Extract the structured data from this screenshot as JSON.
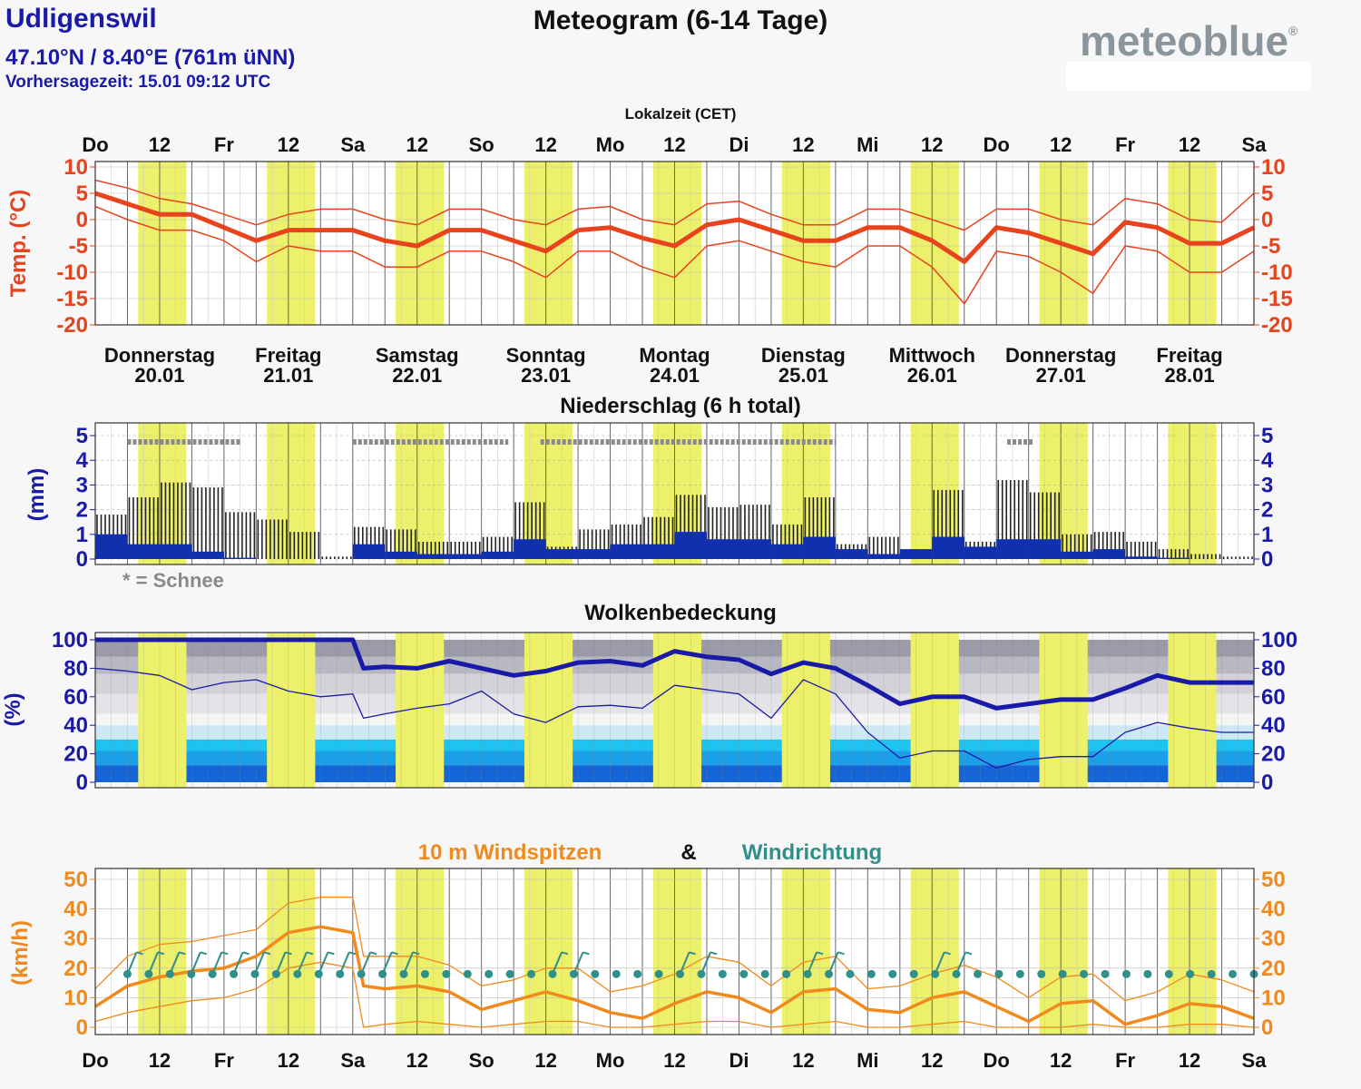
{
  "header": {
    "location": "Udligenswil",
    "coordinates": "47.10°N / 8.40°E (761m üNN)",
    "forecast_time": "Vorhersagezeit: 15.01 09:12 UTC",
    "title": "Meteogram (6-14 Tage)",
    "logo": "meteoblue",
    "logo_mark": "®",
    "local_time_label": "Lokalzeit (CET)"
  },
  "colors": {
    "temperature": "#e8431c",
    "precip_axis": "#1a1aa8",
    "precip_bar": "#1030b0",
    "cloud_line": "#1a1aa8",
    "wind_gust": "#f08a1c",
    "wind_dir": "#2f8f8a",
    "daylight_band": "#ecf06a",
    "snow_marker": "#8a8a8a"
  },
  "time_axis": {
    "tick_labels": [
      "Do",
      "12",
      "Fr",
      "12",
      "Sa",
      "12",
      "So",
      "12",
      "Mo",
      "12",
      "Di",
      "12",
      "Mi",
      "12",
      "Do",
      "12",
      "Fr",
      "12",
      "Sa"
    ]
  },
  "days": [
    {
      "name": "Donnerstag",
      "date": "20.01"
    },
    {
      "name": "Freitag",
      "date": "21.01"
    },
    {
      "name": "Samstag",
      "date": "22.01"
    },
    {
      "name": "Sonntag",
      "date": "23.01"
    },
    {
      "name": "Montag",
      "date": "24.01"
    },
    {
      "name": "Dienstag",
      "date": "25.01"
    },
    {
      "name": "Mittwoch",
      "date": "26.01"
    },
    {
      "name": "Donnerstag",
      "date": "27.01"
    },
    {
      "name": "Freitag",
      "date": "28.01"
    }
  ],
  "chart_data": [
    {
      "type": "line",
      "panel": "temperature",
      "ylabel": "Temp. (°C)",
      "ylim": [
        -20,
        10
      ],
      "yticks": [
        "10",
        "5",
        "0",
        "-5",
        "-10",
        "-15",
        "-20"
      ],
      "x_unit": "hours from Do 00:00",
      "x": [
        0,
        6,
        12,
        18,
        24,
        30,
        36,
        42,
        48,
        54,
        60,
        66,
        72,
        78,
        84,
        90,
        96,
        102,
        108,
        114,
        120,
        126,
        132,
        138,
        144,
        150,
        156,
        162,
        168,
        174,
        180,
        186,
        192,
        198,
        204,
        210,
        216
      ],
      "series": [
        {
          "role": "mean",
          "values": [
            5,
            3,
            1,
            1,
            -1.5,
            -4,
            -2,
            -2,
            -2,
            -4,
            -5,
            -2,
            -2,
            -4,
            -6,
            -2,
            -1.5,
            -3.5,
            -5,
            -1,
            0,
            -2,
            -4,
            -4,
            -1.5,
            -1.5,
            -4,
            -8,
            -1.5,
            -2.5,
            -4.5,
            -6.5,
            -0.5,
            -1.5,
            -4.5,
            -4.5,
            -1.5
          ]
        },
        {
          "role": "upper",
          "values": [
            7.5,
            6,
            4,
            3,
            1,
            -1,
            1,
            2,
            2,
            0,
            -1,
            2,
            2,
            0,
            -1,
            2,
            2.5,
            0,
            -1,
            3,
            3.5,
            1,
            -1,
            -1,
            2,
            2,
            0,
            -2,
            2,
            2,
            0,
            -1,
            4,
            3,
            0,
            -0.5,
            5
          ]
        },
        {
          "role": "lower",
          "values": [
            2.5,
            0,
            -2,
            -2,
            -4,
            -8,
            -5,
            -6,
            -6,
            -9,
            -9,
            -6,
            -6,
            -8,
            -11,
            -6,
            -6,
            -9,
            -11,
            -5,
            -4,
            -6,
            -8,
            -9,
            -5,
            -5,
            -9,
            -16,
            -6,
            -7,
            -10,
            -14,
            -5,
            -6,
            -10,
            -10,
            -6
          ]
        }
      ]
    },
    {
      "type": "bar",
      "panel": "precipitation",
      "title": "Niederschlag (6 h total)",
      "ylabel": "(mm)",
      "ylim": [
        0,
        5
      ],
      "yticks": [
        "5",
        "4",
        "3",
        "2",
        "1",
        "0"
      ],
      "x_unit": "hours from Do 00:00",
      "x": [
        0,
        6,
        12,
        18,
        24,
        30,
        36,
        42,
        48,
        54,
        60,
        66,
        72,
        78,
        84,
        90,
        96,
        102,
        108,
        114,
        120,
        126,
        132,
        138,
        144,
        150,
        156,
        162,
        168,
        174,
        180,
        186,
        192,
        198,
        204,
        210
      ],
      "series": [
        {
          "role": "total_range",
          "values": [
            1.8,
            2.5,
            3.1,
            2.9,
            1.9,
            1.6,
            1.1,
            0.1,
            1.3,
            1.2,
            0.7,
            0.7,
            0.9,
            2.3,
            0.5,
            1.2,
            1.4,
            1.7,
            2.6,
            2.1,
            2.2,
            1.4,
            2.5,
            0.6,
            0.9,
            0.4,
            2.8,
            0.7,
            3.2,
            2.7,
            1,
            1.1,
            0.7,
            0.4,
            0.2,
            0.1
          ]
        },
        {
          "role": "mean",
          "values": [
            1,
            0.6,
            0.6,
            0.3,
            0.05,
            0,
            0,
            0,
            0.6,
            0.3,
            0.2,
            0.2,
            0.3,
            0.8,
            0.4,
            0.4,
            0.6,
            0.6,
            1.1,
            0.8,
            0.8,
            0.6,
            0.9,
            0.4,
            0.2,
            0.4,
            0.9,
            0.5,
            0.8,
            0.8,
            0.3,
            0.4,
            0.1,
            0.05,
            0,
            0
          ]
        }
      ],
      "snow_label": "* = Schnee",
      "snow_periods": [
        [
          6,
          27
        ],
        [
          48,
          77
        ],
        [
          83,
          138
        ],
        [
          170,
          175
        ]
      ]
    },
    {
      "type": "area",
      "panel": "cloud_cover",
      "title": "Wolkenbedeckung",
      "ylabel": "(%)",
      "ylim": [
        0,
        100
      ],
      "yticks": [
        "100",
        "80",
        "60",
        "40",
        "20",
        "0"
      ],
      "x_unit": "hours from Do 00:00",
      "x": [
        0,
        6,
        12,
        18,
        24,
        30,
        36,
        42,
        48,
        50,
        54,
        60,
        66,
        72,
        78,
        84,
        90,
        96,
        102,
        108,
        114,
        120,
        126,
        132,
        138,
        144,
        150,
        156,
        162,
        168,
        174,
        180,
        186,
        192,
        198,
        204,
        210,
        216
      ],
      "series": [
        {
          "role": "mean",
          "values": [
            100,
            100,
            100,
            100,
            100,
            100,
            100,
            100,
            100,
            80,
            81,
            80,
            85,
            80,
            75,
            78,
            84,
            85,
            82,
            92,
            88,
            86,
            76,
            84,
            80,
            68,
            55,
            60,
            60,
            52,
            55,
            58,
            58,
            66,
            75,
            70,
            70,
            70
          ]
        },
        {
          "role": "lower",
          "values": [
            80,
            78,
            75,
            65,
            70,
            72,
            64,
            60,
            62,
            45,
            48,
            52,
            55,
            64,
            48,
            42,
            53,
            54,
            52,
            68,
            65,
            62,
            45,
            72,
            62,
            35,
            17,
            22,
            22,
            10,
            16,
            18,
            18,
            35,
            42,
            38,
            35,
            35
          ]
        }
      ]
    },
    {
      "type": "line",
      "panel": "wind",
      "title_parts": [
        "10 m Windspitzen",
        "&",
        "Windrichtung"
      ],
      "ylabel": "(km/h)",
      "ylim": [
        0,
        50
      ],
      "yticks": [
        "50",
        "40",
        "30",
        "20",
        "10",
        "0"
      ],
      "x_unit": "hours from Do 00:00",
      "x": [
        0,
        6,
        12,
        18,
        24,
        30,
        36,
        42,
        48,
        50,
        54,
        60,
        66,
        72,
        78,
        84,
        90,
        96,
        102,
        108,
        114,
        120,
        126,
        132,
        138,
        144,
        150,
        156,
        162,
        168,
        174,
        180,
        186,
        192,
        198,
        204,
        210,
        216
      ],
      "series": [
        {
          "role": "mean",
          "values": [
            7,
            14,
            17,
            19,
            20,
            24,
            32,
            34,
            32,
            14,
            13,
            14,
            12,
            6,
            9,
            12,
            9,
            5,
            3,
            8,
            12,
            10,
            5,
            12,
            13,
            6,
            5,
            10,
            12,
            7,
            2,
            8,
            9,
            1,
            4,
            8,
            7,
            3
          ]
        },
        {
          "role": "upper",
          "values": [
            13,
            24,
            28,
            29,
            31,
            33,
            42,
            44,
            44,
            24,
            24,
            24,
            21,
            14,
            16,
            20,
            20,
            12,
            14,
            18,
            24,
            22,
            14,
            22,
            24,
            13,
            14,
            18,
            21,
            17,
            10,
            17,
            18,
            9,
            12,
            18,
            16,
            12
          ]
        },
        {
          "role": "lower",
          "values": [
            2,
            5,
            7,
            9,
            10,
            13,
            20,
            22,
            20,
            0,
            1,
            2,
            1,
            0,
            1,
            2,
            2,
            0,
            0,
            1,
            2,
            2,
            0,
            1,
            2,
            0,
            0,
            1,
            2,
            0,
            0,
            0,
            1,
            0,
            0,
            1,
            1,
            0
          ]
        }
      ],
      "direction_barb_count": 54
    }
  ]
}
